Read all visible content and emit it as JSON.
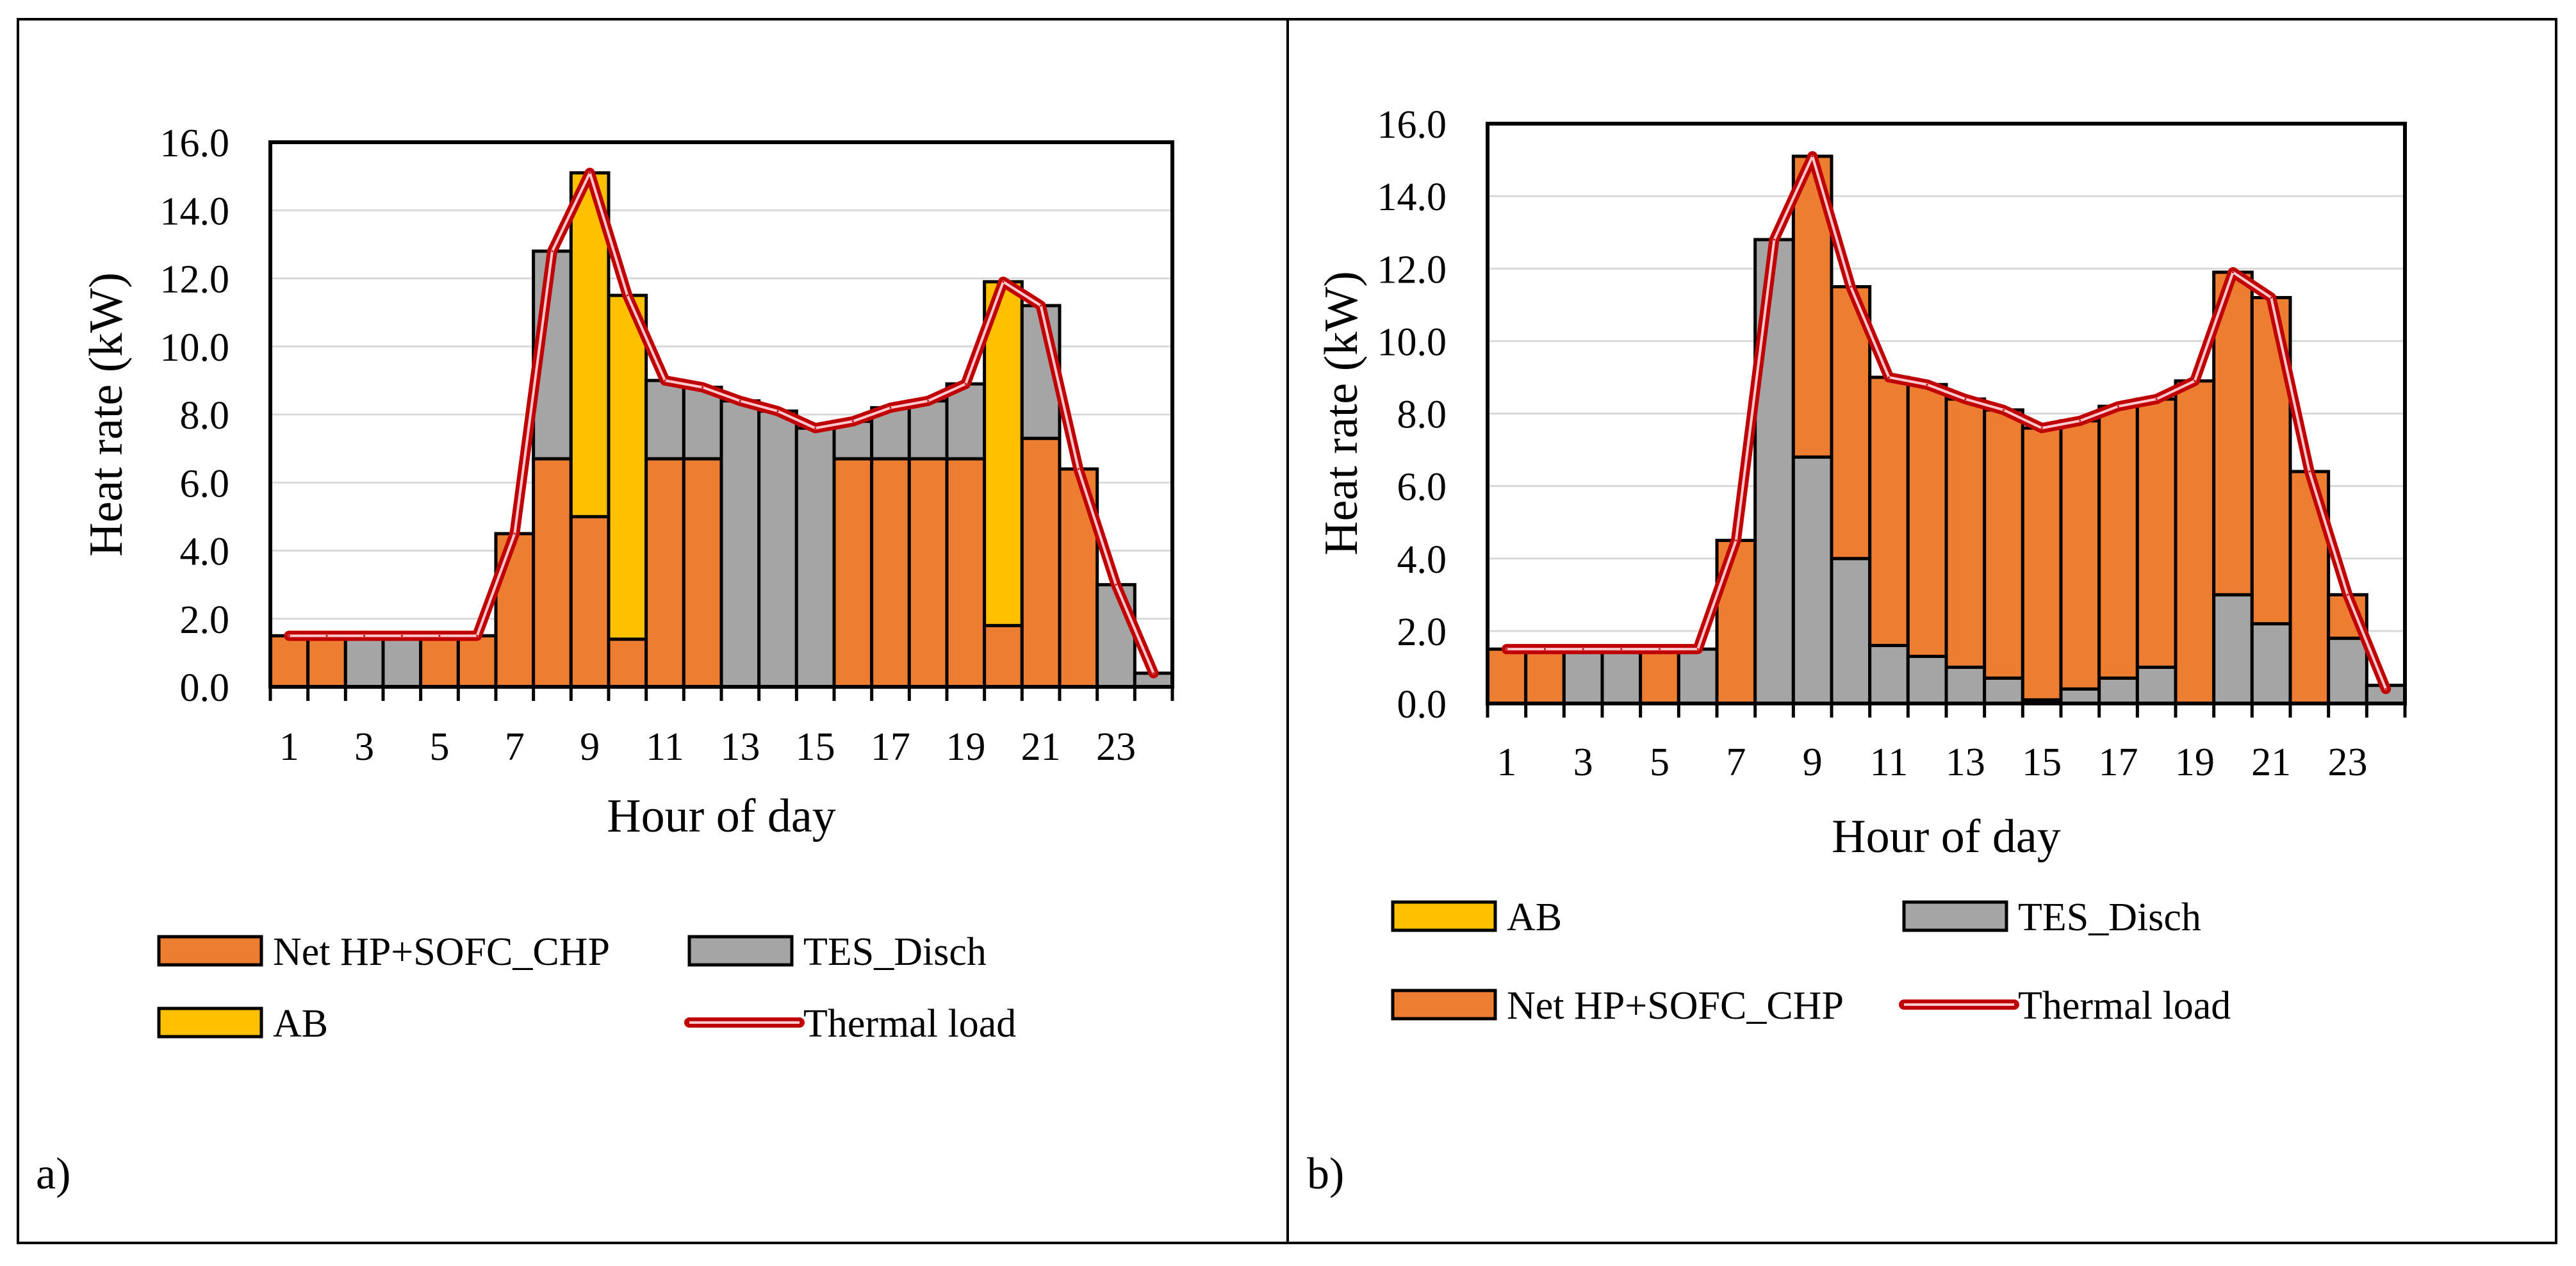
{
  "colors": {
    "net": "#ED7D31",
    "tes": "#A5A5A5",
    "ab": "#FFC000",
    "load_outer": "#C00000",
    "load_inner": "#FFC7CE",
    "grid": "#D9D9D9"
  },
  "chart_data": [
    {
      "type": "bar",
      "stacked": true,
      "panel_label": "a)",
      "xlabel": "Hour of day",
      "ylabel": "Heat rate (kW)",
      "ylim": [
        0,
        16
      ],
      "y_ticks": [
        "0.0",
        "2.0",
        "4.0",
        "6.0",
        "8.0",
        "10.0",
        "12.0",
        "14.0",
        "16.0"
      ],
      "x_tick_labels": [
        "1",
        "3",
        "5",
        "7",
        "9",
        "11",
        "13",
        "15",
        "17",
        "19",
        "21",
        "23"
      ],
      "categories": [
        1,
        2,
        3,
        4,
        5,
        6,
        7,
        8,
        9,
        10,
        11,
        12,
        13,
        14,
        15,
        16,
        17,
        18,
        19,
        20,
        21,
        22,
        23,
        24
      ],
      "series": [
        {
          "name": "Net HP+SOFC_CHP",
          "key": "net",
          "values": [
            1.5,
            1.5,
            0,
            0,
            1.5,
            1.5,
            4.5,
            6.7,
            5.0,
            1.4,
            6.7,
            6.7,
            0,
            0,
            0,
            6.7,
            6.7,
            6.7,
            6.7,
            1.8,
            7.3,
            6.4,
            0,
            0
          ]
        },
        {
          "name": "TES_Disch",
          "key": "tes",
          "values": [
            0,
            0,
            1.5,
            1.5,
            0,
            0,
            0,
            6.1,
            0,
            0,
            2.3,
            2.1,
            8.4,
            8.1,
            7.6,
            1.1,
            1.5,
            1.7,
            2.2,
            0,
            3.9,
            0,
            3.0,
            0.4
          ]
        },
        {
          "name": "AB",
          "key": "ab",
          "values": [
            0,
            0,
            0,
            0,
            0,
            0,
            0,
            0,
            10.1,
            10.1,
            0,
            0,
            0,
            0,
            0,
            0,
            0,
            0,
            0,
            10.1,
            0,
            0,
            0,
            0
          ]
        }
      ],
      "line": {
        "name": "Thermal load",
        "values": [
          1.5,
          1.5,
          1.5,
          1.5,
          1.5,
          1.5,
          4.5,
          12.8,
          15.1,
          11.5,
          9.0,
          8.8,
          8.4,
          8.1,
          7.6,
          7.8,
          8.2,
          8.4,
          8.9,
          11.9,
          11.2,
          6.4,
          3.0,
          0.4
        ]
      },
      "legend": [
        {
          "label": "Net HP+SOFC_CHP",
          "key": "net",
          "kind": "box"
        },
        {
          "label": "TES_Disch",
          "key": "tes",
          "kind": "box"
        },
        {
          "label": "AB",
          "key": "ab",
          "kind": "box"
        },
        {
          "label": "Thermal load",
          "key": "load",
          "kind": "line"
        }
      ]
    },
    {
      "type": "bar",
      "stacked": true,
      "panel_label": "b)",
      "xlabel": "Hour of day",
      "ylabel": "Heat rate (kW)",
      "ylim": [
        0,
        16
      ],
      "y_ticks": [
        "0.0",
        "2.0",
        "4.0",
        "6.0",
        "8.0",
        "10.0",
        "12.0",
        "14.0",
        "16.0"
      ],
      "x_tick_labels": [
        "1",
        "3",
        "5",
        "7",
        "9",
        "11",
        "13",
        "15",
        "17",
        "19",
        "21",
        "23"
      ],
      "categories": [
        1,
        2,
        3,
        4,
        5,
        6,
        7,
        8,
        9,
        10,
        11,
        12,
        13,
        14,
        15,
        16,
        17,
        18,
        19,
        20,
        21,
        22,
        23,
        24
      ],
      "series": [
        {
          "name": "TES_Disch",
          "key": "tes",
          "values": [
            0,
            0,
            1.5,
            1.5,
            0,
            1.5,
            0,
            12.8,
            6.8,
            4.0,
            1.6,
            1.3,
            1.0,
            0.7,
            0.1,
            0.4,
            0.7,
            1.0,
            0,
            3.0,
            2.2,
            0,
            1.8,
            0.5
          ]
        },
        {
          "name": "Net HP+SOFC_CHP",
          "key": "net",
          "values": [
            1.5,
            1.5,
            0,
            0,
            1.5,
            0,
            4.5,
            0,
            8.3,
            7.5,
            7.4,
            7.5,
            7.4,
            7.4,
            7.5,
            7.4,
            7.5,
            7.4,
            8.9,
            8.9,
            9.0,
            6.4,
            1.2,
            0
          ]
        },
        {
          "name": "AB",
          "key": "ab",
          "values": [
            0,
            0,
            0,
            0,
            0,
            0,
            0,
            0,
            0,
            0,
            0,
            0,
            0,
            0,
            0,
            0,
            0,
            0,
            0,
            0,
            0,
            0,
            0,
            0
          ]
        }
      ],
      "line": {
        "name": "Thermal load",
        "values": [
          1.5,
          1.5,
          1.5,
          1.5,
          1.5,
          1.5,
          4.5,
          12.8,
          15.1,
          11.5,
          9.0,
          8.8,
          8.4,
          8.1,
          7.6,
          7.8,
          8.2,
          8.4,
          8.9,
          11.9,
          11.2,
          6.4,
          3.0,
          0.4
        ]
      },
      "legend": [
        {
          "label": "AB",
          "key": "ab",
          "kind": "box"
        },
        {
          "label": "TES_Disch",
          "key": "tes",
          "kind": "box"
        },
        {
          "label": "Net HP+SOFC_CHP",
          "key": "net",
          "kind": "box"
        },
        {
          "label": "Thermal load",
          "key": "load",
          "kind": "line"
        }
      ]
    }
  ]
}
